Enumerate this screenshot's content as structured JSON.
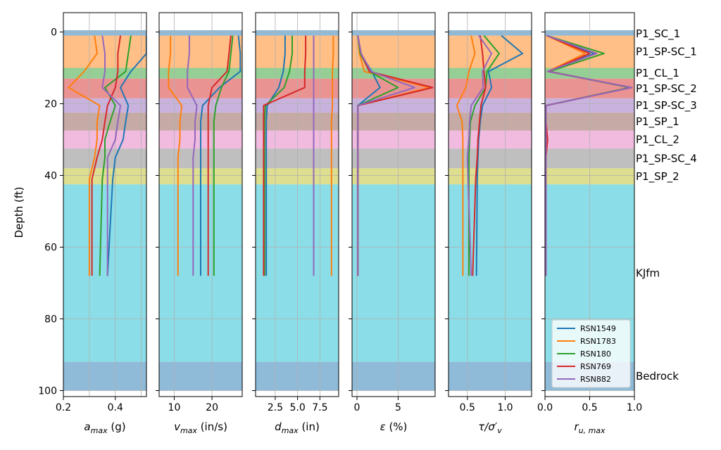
{
  "chart_data": {
    "type": "line",
    "y_axis": {
      "label": "Depth (ft)",
      "range": [
        0,
        100
      ],
      "inverted": true,
      "ticks": [
        0,
        20,
        40,
        60,
        80,
        100
      ]
    },
    "layers": [
      {
        "name": "P1_SC_1",
        "top": -0.5,
        "bottom": 1.0,
        "color": "#1f77b4"
      },
      {
        "name": "P1_SP-SC_1",
        "top": 1.0,
        "bottom": 10.0,
        "color": "#ff7f0e"
      },
      {
        "name": "P1_CL_1",
        "top": 10.0,
        "bottom": 13.0,
        "color": "#2ca02c"
      },
      {
        "name": "P1_SP-SC_2",
        "top": 13.0,
        "bottom": 18.5,
        "color": "#d62728"
      },
      {
        "name": "P1_SP-SC_3",
        "top": 18.5,
        "bottom": 22.5,
        "color": "#9467bd"
      },
      {
        "name": "P1_SP_1",
        "top": 22.5,
        "bottom": 27.5,
        "color": "#8c564b"
      },
      {
        "name": "P1_CL_2",
        "top": 27.5,
        "bottom": 32.5,
        "color": "#e377c2"
      },
      {
        "name": "P1_SP-SC_4",
        "top": 32.5,
        "bottom": 38.0,
        "color": "#7f7f7f"
      },
      {
        "name": "P1_SP_2",
        "top": 38.0,
        "bottom": 42.5,
        "color": "#bcbd22"
      },
      {
        "name": "KJfm",
        "top": 42.5,
        "bottom": 92.0,
        "color": "#17becf"
      },
      {
        "name": "Bedrock",
        "top": 92.0,
        "bottom": 100.0,
        "color": "#1f77b4"
      }
    ],
    "depths": [
      1,
      6,
      11,
      15.5,
      20.5,
      25,
      30,
      35,
      41,
      68
    ],
    "series_colors": {
      "RSN1549": "#1f77b4",
      "RSN1783": "#ff7f0e",
      "RSN180": "#2ca02c",
      "RSN769": "#d62728",
      "RSN882": "#9467bd"
    },
    "legend": {
      "entries": [
        "RSN1549",
        "RSN1783",
        "RSN180",
        "RSN769",
        "RSN882"
      ],
      "location": "lower-right of last panel"
    },
    "panels": [
      {
        "xlabel_prefix": "a",
        "xlabel_sub": "max",
        "xlabel_suffix": " (g)",
        "xlim": [
          0.2,
          0.52
        ],
        "xticks": [
          0.2,
          0.4
        ],
        "xtick_labels": [
          "0.2",
          "0.4"
        ],
        "grid_x": [
          0.2,
          0.3,
          0.4,
          0.5
        ],
        "series": [
          {
            "name": "RSN1549",
            "values": [
              0.52,
              0.52,
              0.46,
              0.42,
              0.45,
              0.44,
              0.43,
              0.4,
              0.39,
              0.37
            ]
          },
          {
            "name": "RSN1783",
            "values": [
              0.32,
              0.33,
              0.28,
              0.22,
              0.34,
              0.33,
              0.33,
              0.32,
              0.3,
              0.3
            ]
          },
          {
            "name": "RSN180",
            "values": [
              0.46,
              0.45,
              0.44,
              0.36,
              0.4,
              0.38,
              0.36,
              0.36,
              0.35,
              0.34
            ]
          },
          {
            "name": "RSN769",
            "values": [
              0.42,
              0.41,
              0.41,
              0.4,
              0.37,
              0.36,
              0.35,
              0.33,
              0.31,
              0.31
            ]
          },
          {
            "name": "RSN882",
            "values": [
              0.35,
              0.36,
              0.36,
              0.35,
              0.42,
              0.41,
              0.4,
              0.37,
              0.37,
              0.37
            ]
          }
        ]
      },
      {
        "xlabel_prefix": "v",
        "xlabel_sub": "max",
        "xlabel_suffix": " (in/s)",
        "xlim": [
          6,
          28
        ],
        "xticks": [
          10,
          20
        ],
        "xtick_labels": [
          "10",
          "20"
        ],
        "grid_x": [
          10,
          20
        ],
        "series": [
          {
            "name": "RSN1549",
            "values": [
              27.0,
              27.5,
              27.5,
              22.0,
              17.5,
              17.0,
              17.0,
              17.0,
              17.0,
              17.0
            ]
          },
          {
            "name": "RSN1783",
            "values": [
              9.0,
              9.0,
              8.5,
              8.5,
              12.0,
              11.5,
              11.5,
              11.0,
              11.0,
              11.0
            ]
          },
          {
            "name": "RSN180",
            "values": [
              25.5,
              25.0,
              24.5,
              22.5,
              21.0,
              20.5,
              20.5,
              20.5,
              20.5,
              20.5
            ]
          },
          {
            "name": "RSN769",
            "values": [
              25.0,
              24.5,
              24.0,
              20.0,
              19.0,
              19.0,
              19.0,
              19.0,
              19.0,
              19.0
            ]
          },
          {
            "name": "RSN882",
            "values": [
              14.0,
              14.0,
              13.5,
              13.5,
              16.0,
              15.5,
              15.5,
              15.0,
              15.0,
              15.0
            ]
          }
        ]
      },
      {
        "xlabel_prefix": "d",
        "xlabel_sub": "max",
        "xlabel_suffix": " (in)",
        "xlim": [
          0.3,
          9.6
        ],
        "xticks": [
          2.5,
          5.0,
          7.5
        ],
        "xtick_labels": [
          "2.5",
          "5.0",
          "7.5"
        ],
        "grid_x": [
          2.5,
          5.0,
          7.5
        ],
        "series": [
          {
            "name": "RSN1549",
            "values": [
              3.6,
              3.6,
              3.4,
              2.9,
              1.6,
              1.5,
              1.5,
              1.5,
              1.5,
              1.5
            ]
          },
          {
            "name": "RSN1783",
            "values": [
              9.0,
              9.0,
              8.9,
              8.9,
              8.9,
              8.8,
              8.8,
              8.8,
              8.8,
              8.8
            ]
          },
          {
            "name": "RSN180",
            "values": [
              4.4,
              4.4,
              4.1,
              3.5,
              1.4,
              1.3,
              1.3,
              1.3,
              1.3,
              1.3
            ]
          },
          {
            "name": "RSN769",
            "values": [
              5.9,
              5.9,
              5.8,
              5.8,
              1.2,
              1.2,
              1.2,
              1.2,
              1.2,
              1.2
            ]
          },
          {
            "name": "RSN882",
            "values": [
              6.8,
              6.8,
              6.8,
              6.8,
              6.8,
              6.8,
              6.8,
              6.8,
              6.8,
              6.8
            ]
          }
        ]
      },
      {
        "xlabel_prefix": "ε",
        "xlabel_sub": "",
        "xlabel_suffix": " (%)",
        "xlim": [
          -0.6,
          9.5
        ],
        "xticks": [
          0,
          5
        ],
        "xtick_labels": [
          "0",
          "5"
        ],
        "grid_x": [
          0,
          5
        ],
        "series": [
          {
            "name": "RSN1549",
            "values": [
              0.1,
              0.4,
              1.8,
              2.8,
              0.1,
              0.1,
              0.1,
              0.1,
              0.1,
              0.1
            ]
          },
          {
            "name": "RSN1783",
            "values": [
              0.1,
              0.3,
              0.9,
              8.8,
              0.1,
              0.1,
              0.1,
              0.1,
              0.1,
              0.1
            ]
          },
          {
            "name": "RSN180",
            "values": [
              0.1,
              0.4,
              1.5,
              5.0,
              0.1,
              0.1,
              0.1,
              0.1,
              0.1,
              0.1
            ]
          },
          {
            "name": "RSN769",
            "values": [
              0.1,
              0.5,
              1.5,
              9.2,
              0.1,
              0.1,
              0.1,
              0.1,
              0.1,
              0.1
            ]
          },
          {
            "name": "RSN882",
            "values": [
              0.1,
              0.5,
              1.7,
              7.0,
              0.1,
              0.1,
              0.1,
              0.1,
              0.1,
              0.1
            ]
          }
        ]
      },
      {
        "xlabel_prefix": "τ/σ′",
        "xlabel_sub": "v",
        "xlabel_suffix": "",
        "xlim": [
          0.25,
          1.35
        ],
        "xticks": [
          0.5,
          1.0
        ],
        "xtick_labels": [
          "0.5",
          "1.0"
        ],
        "grid_x": [
          0.5,
          1.0
        ],
        "series": [
          {
            "name": "RSN1549",
            "values": [
              0.95,
              1.23,
              0.78,
              0.82,
              0.7,
              0.67,
              0.65,
              0.64,
              0.63,
              0.62
            ]
          },
          {
            "name": "RSN1783",
            "values": [
              0.55,
              0.6,
              0.52,
              0.48,
              0.36,
              0.43,
              0.44,
              0.44,
              0.44,
              0.44
            ]
          },
          {
            "name": "RSN180",
            "values": [
              0.72,
              0.92,
              0.76,
              0.74,
              0.6,
              0.54,
              0.53,
              0.52,
              0.52,
              0.52
            ]
          },
          {
            "name": "RSN769",
            "values": [
              0.67,
              0.7,
              0.72,
              0.74,
              0.68,
              0.66,
              0.64,
              0.63,
              0.61,
              0.57
            ]
          },
          {
            "name": "RSN882",
            "values": [
              0.65,
              0.82,
              0.7,
              0.71,
              0.55,
              0.53,
              0.52,
              0.5,
              0.51,
              0.55
            ]
          }
        ]
      },
      {
        "xlabel_prefix": "r",
        "xlabel_sub": "u, max",
        "xlabel_suffix": "",
        "xlim": [
          0,
          1.0
        ],
        "xticks": [
          0.0,
          0.5,
          1.0
        ],
        "xtick_labels": [
          "0.0",
          "0.5",
          "1.0"
        ],
        "grid_x": [
          0.5
        ],
        "series": [
          {
            "name": "RSN1549",
            "values": [
              0.02,
              0.55,
              0.03,
              0.95,
              0.01,
              0.01,
              0.01,
              0.01,
              0.01,
              0.01
            ]
          },
          {
            "name": "RSN1783",
            "values": [
              0.02,
              0.45,
              0.03,
              0.95,
              0.01,
              0.01,
              0.01,
              0.01,
              0.01,
              0.01
            ]
          },
          {
            "name": "RSN180",
            "values": [
              0.02,
              0.66,
              0.05,
              0.95,
              0.01,
              0.01,
              0.01,
              0.01,
              0.01,
              0.01
            ]
          },
          {
            "name": "RSN769",
            "values": [
              0.02,
              0.5,
              0.04,
              0.97,
              0.01,
              0.01,
              0.03,
              0.01,
              0.01,
              0.01
            ]
          },
          {
            "name": "RSN882",
            "values": [
              0.02,
              0.58,
              0.03,
              0.97,
              0.01,
              0.01,
              0.01,
              0.01,
              0.01,
              0.01
            ]
          }
        ]
      }
    ]
  }
}
